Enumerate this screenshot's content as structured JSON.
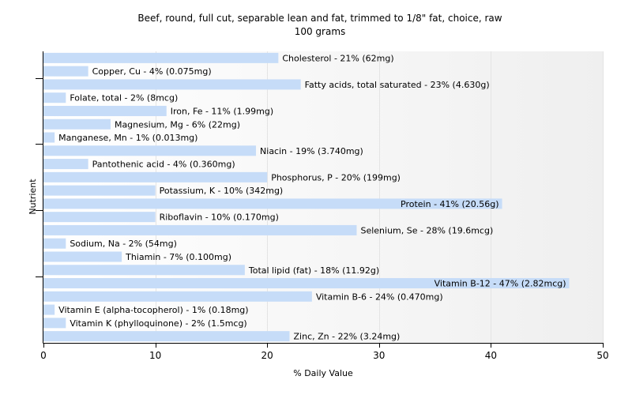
{
  "chart_data": {
    "type": "bar",
    "orientation": "horizontal",
    "title": "Beef, round, full cut, separable lean and fat, trimmed to 1/8\" fat, choice, raw",
    "subtitle": "100 grams",
    "xlabel": "% Daily Value",
    "ylabel": "Nutrient",
    "xlim": [
      0,
      50
    ],
    "xticks": [
      0,
      10,
      20,
      30,
      40,
      50
    ],
    "grid": true,
    "bar_color": "#c6dcf8",
    "categories": [
      "Cholesterol",
      "Copper, Cu",
      "Fatty acids, total saturated",
      "Folate, total",
      "Iron, Fe",
      "Magnesium, Mg",
      "Manganese, Mn",
      "Niacin",
      "Pantothenic acid",
      "Phosphorus, P",
      "Potassium, K",
      "Protein",
      "Riboflavin",
      "Selenium, Se",
      "Sodium, Na",
      "Thiamin",
      "Total lipid (fat)",
      "Vitamin B-12",
      "Vitamin B-6",
      "Vitamin E (alpha-tocopherol)",
      "Vitamin K (phylloquinone)",
      "Zinc, Zn"
    ],
    "values": [
      21,
      4,
      23,
      2,
      11,
      6,
      1,
      19,
      4,
      20,
      10,
      41,
      10,
      28,
      2,
      7,
      18,
      47,
      24,
      1,
      2,
      22
    ],
    "labels": [
      "Cholesterol - 21% (62mg)",
      "Copper, Cu - 4% (0.075mg)",
      "Fatty acids, total saturated - 23% (4.630g)",
      "Folate, total - 2% (8mcg)",
      "Iron, Fe - 11% (1.99mg)",
      "Magnesium, Mg - 6% (22mg)",
      "Manganese, Mn - 1% (0.013mg)",
      "Niacin - 19% (3.740mg)",
      "Pantothenic acid - 4% (0.360mg)",
      "Phosphorus, P - 20% (199mg)",
      "Potassium, K - 10% (342mg)",
      "Protein - 41% (20.56g)",
      "Riboflavin - 10% (0.170mg)",
      "Selenium, Se - 28% (19.6mcg)",
      "Sodium, Na - 2% (54mg)",
      "Thiamin - 7% (0.100mg)",
      "Total lipid (fat) - 18% (11.92g)",
      "Vitamin B-12 - 47% (2.82mcg)",
      "Vitamin B-6 - 24% (0.470mg)",
      "Vitamin E (alpha-tocopherol) - 1% (0.18mg)",
      "Vitamin K (phylloquinone) - 2% (1.5mcg)",
      "Zinc, Zn - 22% (3.24mg)"
    ]
  }
}
